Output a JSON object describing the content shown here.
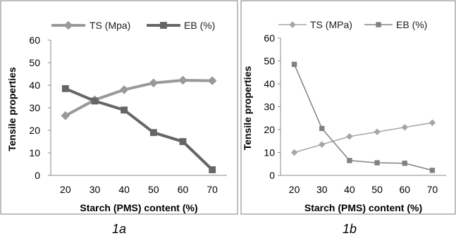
{
  "chart_data": [
    {
      "id": "1a",
      "type": "line",
      "caption": "1a",
      "xlabel": "Starch (PMS) content (%)",
      "ylabel": "Tensile properties",
      "x": [
        20,
        30,
        40,
        50,
        60,
        70
      ],
      "xlim": [
        15,
        75
      ],
      "ylim": [
        0,
        60
      ],
      "yticks": [
        0,
        10,
        20,
        30,
        40,
        50,
        60
      ],
      "grid": false,
      "legend_position": "top",
      "series": [
        {
          "name": "TS (Mpa)",
          "marker": "diamond",
          "color": "#999999",
          "stroke_weight": "thick",
          "values": [
            26.5,
            33.5,
            38,
            41,
            42.2,
            42
          ]
        },
        {
          "name": "EB (%)",
          "marker": "square",
          "color": "#666666",
          "stroke_weight": "thick",
          "values": [
            38.5,
            33,
            29,
            19,
            15,
            2.5
          ]
        }
      ]
    },
    {
      "id": "1b",
      "type": "line",
      "caption": "1b",
      "xlabel": "Starch (PMS) content (%)",
      "ylabel": "Tensile properties",
      "x": [
        20,
        30,
        40,
        50,
        60,
        70
      ],
      "xlim": [
        15,
        75
      ],
      "ylim": [
        0,
        60
      ],
      "yticks": [
        0,
        10,
        20,
        30,
        40,
        50,
        60
      ],
      "grid": false,
      "legend_position": "top",
      "series": [
        {
          "name": "TS (MPa)",
          "marker": "diamond",
          "color": "#a6a6a6",
          "stroke_weight": "thin",
          "values": [
            10,
            13.5,
            17,
            19,
            21,
            23
          ]
        },
        {
          "name": "EB (%)",
          "marker": "square",
          "color": "#808080",
          "stroke_weight": "thin",
          "values": [
            48.5,
            20.5,
            6.5,
            5.5,
            5.3,
            2.2
          ]
        }
      ]
    }
  ]
}
